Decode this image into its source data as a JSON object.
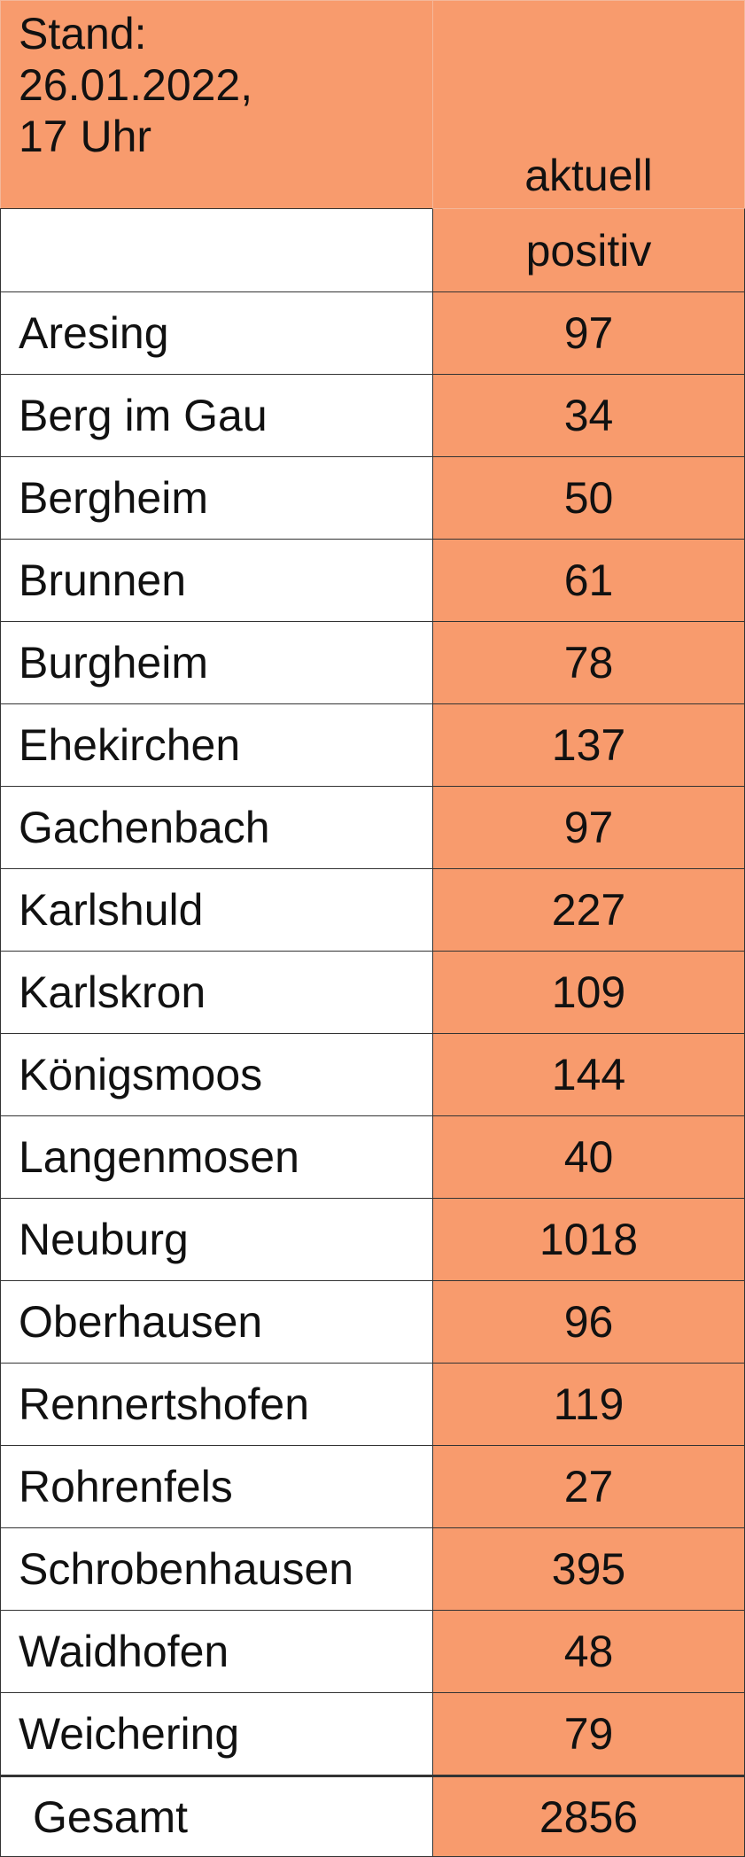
{
  "header": {
    "label_lines": [
      "Stand:",
      "26.01.2022,",
      "17 Uhr"
    ],
    "column": "aktuell"
  },
  "subheader": {
    "column": "positiv"
  },
  "rows": [
    [
      "Aresing",
      97
    ],
    [
      "Berg im Gau",
      34
    ],
    [
      "Bergheim",
      50
    ],
    [
      "Brunnen",
      61
    ],
    [
      "Burgheim",
      78
    ],
    [
      "Ehekirchen",
      137
    ],
    [
      "Gachenbach",
      97
    ],
    [
      "Karlshuld",
      227
    ],
    [
      "Karlskron",
      109
    ],
    [
      "Königsmoos",
      144
    ],
    [
      "Langenmosen",
      40
    ],
    [
      "Neuburg",
      1018
    ],
    [
      "Oberhausen",
      96
    ],
    [
      "Rennertshofen",
      119
    ],
    [
      "Rohrenfels",
      27
    ],
    [
      "Schrobenhausen",
      395
    ],
    [
      "Waidhofen",
      48
    ],
    [
      "Weichering",
      79
    ]
  ],
  "total": {
    "label": "Gesamt",
    "value": 2856
  }
}
